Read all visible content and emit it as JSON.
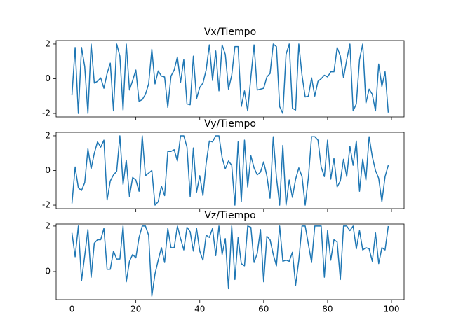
{
  "chart_data": [
    {
      "type": "line",
      "title": "Vx/Tiempo",
      "color": "#1f77b4",
      "x": [
        0,
        1,
        2,
        3,
        4,
        5,
        6,
        7,
        8,
        9,
        10,
        11,
        12,
        13,
        14,
        15,
        16,
        17,
        18,
        19,
        20,
        21,
        22,
        23,
        24,
        25,
        26,
        27,
        28,
        29,
        30,
        31,
        32,
        33,
        34,
        35,
        36,
        37,
        38,
        39,
        40,
        41,
        42,
        43,
        44,
        45,
        46,
        47,
        48,
        49,
        50,
        51,
        52,
        53,
        54,
        55,
        56,
        57,
        58,
        59,
        60,
        61,
        62,
        63,
        64,
        65,
        66,
        67,
        68,
        69,
        70,
        71,
        72,
        73,
        74,
        75,
        76,
        77,
        78,
        79,
        80,
        81,
        82,
        83,
        84,
        85,
        86,
        87,
        88,
        89,
        90,
        91,
        92,
        93,
        94,
        95,
        96,
        97,
        98,
        99
      ],
      "values": [
        -0.95,
        1.8,
        -2,
        1.8,
        0.7,
        -2,
        2,
        -0.25,
        -0.15,
        0.05,
        -0.55,
        0.3,
        0.9,
        -1.85,
        2,
        1.3,
        -1.8,
        2,
        -0.65,
        -0.1,
        0.5,
        -1.3,
        -1.2,
        -0.9,
        -0.3,
        1.7,
        -0.3,
        0.45,
        0.15,
        0.1,
        -1.65,
        0.15,
        0.5,
        1.25,
        -0.2,
        1.1,
        -1.45,
        -1.5,
        1.3,
        -1.15,
        -0.5,
        -0.25,
        0.5,
        1.95,
        -0.1,
        1.6,
        -0.7,
        1.95,
        1.4,
        -0.6,
        0.2,
        1.85,
        1.85,
        -1.6,
        -0.7,
        -1.85,
        0.1,
        1.95,
        -0.65,
        -0.6,
        -0.55,
        0.1,
        0.3,
        2,
        1.85,
        -1.6,
        -2,
        1.4,
        2,
        -1.7,
        -1.8,
        2,
        0.2,
        -1.05,
        -1.0,
        0.05,
        -1.0,
        -0.15,
        0,
        0.2,
        0.1,
        0.4,
        0.4,
        1.8,
        1.3,
        0.05,
        1.1,
        2,
        -1.85,
        -1.45,
        1.1,
        2,
        -1.4,
        -0.6,
        -0.9,
        -1.85,
        0.85,
        -0.45,
        0.4,
        -1.95
      ],
      "xlim": [
        -4.95,
        103.95
      ],
      "xticks": [
        0,
        20,
        40,
        60,
        80,
        100
      ],
      "ylim": [
        -2.2,
        2.2
      ],
      "yticks": [
        -2,
        0,
        2
      ]
    },
    {
      "type": "line",
      "title": "Vy/Tiempo",
      "color": "#1f77b4",
      "x": [
        0,
        1,
        2,
        3,
        4,
        5,
        6,
        7,
        8,
        9,
        10,
        11,
        12,
        13,
        14,
        15,
        16,
        17,
        18,
        19,
        20,
        21,
        22,
        23,
        24,
        25,
        26,
        27,
        28,
        29,
        30,
        31,
        32,
        33,
        34,
        35,
        36,
        37,
        38,
        39,
        40,
        41,
        42,
        43,
        44,
        45,
        46,
        47,
        48,
        49,
        50,
        51,
        52,
        53,
        54,
        55,
        56,
        57,
        58,
        59,
        60,
        61,
        62,
        63,
        64,
        65,
        66,
        67,
        68,
        69,
        70,
        71,
        72,
        73,
        74,
        75,
        76,
        77,
        78,
        79,
        80,
        81,
        82,
        83,
        84,
        85,
        86,
        87,
        88,
        89,
        90,
        91,
        92,
        93,
        94,
        95,
        96,
        97,
        98,
        99
      ],
      "values": [
        -1.9,
        0.2,
        -1,
        -1.15,
        -0.7,
        1.25,
        0.1,
        1.0,
        1.65,
        1.35,
        1.75,
        -1.7,
        -0.6,
        -0.25,
        -0.05,
        2,
        -0.8,
        0.6,
        -1.5,
        -0.4,
        -0.55,
        -1.2,
        2,
        -0.3,
        -0.15,
        0,
        -2,
        -1.8,
        -0.9,
        -1.45,
        1.1,
        1.1,
        1.2,
        0.55,
        2,
        2,
        1.35,
        -1.5,
        1.3,
        -1.25,
        -0.3,
        -1.45,
        0.4,
        1.7,
        1.65,
        2,
        2,
        0.75,
        0.1,
        0.55,
        0.3,
        -2,
        1.65,
        -1.8,
        1.75,
        -0.95,
        0.85,
        0.15,
        -0.25,
        -0.1,
        0.5,
        -0.3,
        -1.6,
        1.95,
        -0.4,
        -2,
        1.45,
        -2,
        -0.55,
        -1.55,
        -0.5,
        0.15,
        -0.35,
        -2,
        -0.4,
        1.95,
        1.95,
        1.75,
        0.2,
        -0.35,
        1.75,
        -0.5,
        0.7,
        -0.95,
        -0.6,
        0.65,
        -0.35,
        1.4,
        0.3,
        1.7,
        -1.2,
        0.65,
        -0.55,
        1.95,
        0.8,
        0,
        -0.45,
        -1.8,
        -0.35,
        0.3
      ],
      "xlim": [
        -4.95,
        103.95
      ],
      "xticks": [
        0,
        20,
        40,
        60,
        80,
        100
      ],
      "ylim": [
        -2.2,
        2.2
      ],
      "yticks": [
        -2,
        0,
        2
      ]
    },
    {
      "type": "line",
      "title": "Vz/Tiempo",
      "color": "#1f77b4",
      "x": [
        0,
        1,
        2,
        3,
        4,
        5,
        6,
        7,
        8,
        9,
        10,
        11,
        12,
        13,
        14,
        15,
        16,
        17,
        18,
        19,
        20,
        21,
        22,
        23,
        24,
        25,
        26,
        27,
        28,
        29,
        30,
        31,
        32,
        33,
        34,
        35,
        36,
        37,
        38,
        39,
        40,
        41,
        42,
        43,
        44,
        45,
        46,
        47,
        48,
        49,
        50,
        51,
        52,
        53,
        54,
        55,
        56,
        57,
        58,
        59,
        60,
        61,
        62,
        63,
        64,
        65,
        66,
        67,
        68,
        69,
        70,
        71,
        72,
        73,
        74,
        75,
        76,
        77,
        78,
        79,
        80,
        81,
        82,
        83,
        84,
        85,
        86,
        87,
        88,
        89,
        90,
        91,
        92,
        93,
        94,
        95,
        96,
        97,
        98,
        99
      ],
      "values": [
        1.7,
        0.65,
        2,
        -0.4,
        0.7,
        1.85,
        -0.25,
        1.25,
        1.4,
        1.4,
        1.9,
        0.1,
        0.1,
        0.9,
        0.55,
        0.55,
        2,
        -0.45,
        0.45,
        0.75,
        0.6,
        1.5,
        2,
        2,
        1.6,
        -1.08,
        -0.1,
        0.5,
        1.05,
        0.4,
        1.9,
        1.05,
        1.05,
        2,
        1.45,
        0.95,
        1.95,
        1.75,
        0.9,
        1.9,
        0.9,
        0.5,
        1.6,
        1.5,
        1.9,
        0.7,
        2,
        0.75,
        1.45,
        -0.75,
        2,
        -0.35,
        1.5,
        0.35,
        0.25,
        2,
        1.95,
        0.4,
        0.8,
        1.85,
        -0.45,
        1.55,
        1.4,
        0.75,
        0.25,
        2,
        0.45,
        0.5,
        0.45,
        0.85,
        -0.6,
        0.5,
        2,
        2,
        1.2,
        0.4,
        2,
        2,
        2,
        -0.25,
        1.8,
        0.5,
        1.4,
        1.3,
        -0.35,
        2,
        2,
        1.8,
        2,
        1.0,
        1.8,
        0.95,
        1.05,
        1.0,
        0.45,
        1.7,
        0.35,
        1.05,
        0.95,
        2
      ],
      "xlim": [
        -4.95,
        103.95
      ],
      "xticks": [
        0,
        20,
        40,
        60,
        80,
        100
      ],
      "ylim": [
        -1.23,
        2.09
      ],
      "yticks": [
        0,
        2
      ]
    }
  ]
}
